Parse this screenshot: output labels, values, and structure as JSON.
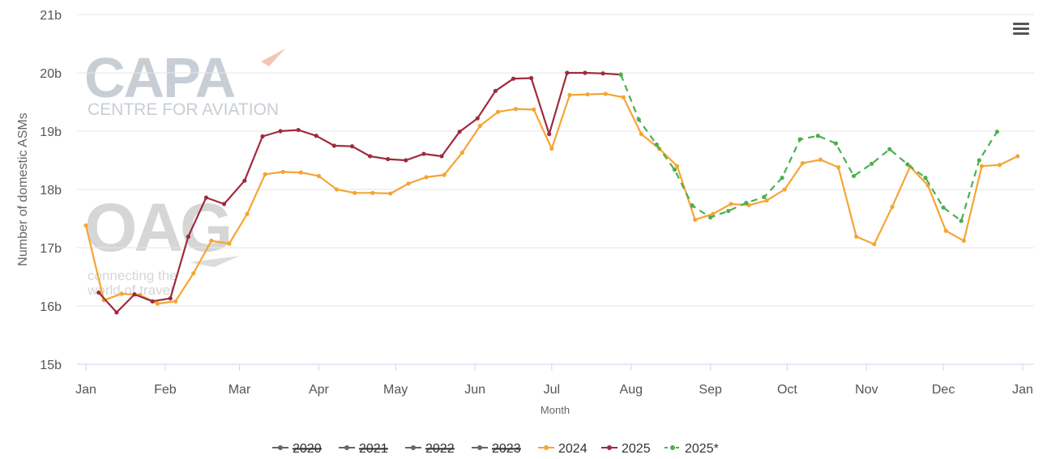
{
  "chart_data": {
    "type": "line",
    "title": "",
    "xlabel": "Month",
    "ylabel": "Number of domestic ASMs",
    "ylim": [
      15,
      21
    ],
    "y_ticks": [
      "15b",
      "16b",
      "17b",
      "18b",
      "19b",
      "20b",
      "21b"
    ],
    "x_ticks": [
      "Jan",
      "Feb",
      "Mar",
      "Apr",
      "May",
      "Jun",
      "Jul",
      "Aug",
      "Sep",
      "Oct",
      "Nov",
      "Dec",
      "Jan"
    ],
    "grid": true,
    "legend_position": "bottom",
    "series": [
      {
        "name": "2020",
        "visible": false,
        "color": "#666666",
        "dashed": false,
        "points": []
      },
      {
        "name": "2021",
        "visible": false,
        "color": "#666666",
        "dashed": false,
        "points": []
      },
      {
        "name": "2022",
        "visible": false,
        "color": "#666666",
        "dashed": false,
        "points": []
      },
      {
        "name": "2023",
        "visible": false,
        "color": "#666666",
        "dashed": false,
        "points": []
      },
      {
        "name": "2024",
        "visible": true,
        "color": "#f5a533",
        "dashed": false,
        "points": [
          [
            "2024-01-01",
            17.38
          ],
          [
            "2024-01-08",
            16.1
          ],
          [
            "2024-01-15",
            16.21
          ],
          [
            "2024-01-22",
            16.19
          ],
          [
            "2024-01-29",
            16.04
          ],
          [
            "2024-02-05",
            16.08
          ],
          [
            "2024-02-12",
            16.56
          ],
          [
            "2024-02-19",
            17.12
          ],
          [
            "2024-02-26",
            17.07
          ],
          [
            "2024-03-04",
            17.58
          ],
          [
            "2024-03-11",
            18.26
          ],
          [
            "2024-03-18",
            18.3
          ],
          [
            "2024-03-25",
            18.29
          ],
          [
            "2024-04-01",
            18.23
          ],
          [
            "2024-04-08",
            18.0
          ],
          [
            "2024-04-15",
            17.94
          ],
          [
            "2024-04-22",
            17.94
          ],
          [
            "2024-04-29",
            17.93
          ],
          [
            "2024-05-06",
            18.1
          ],
          [
            "2024-05-13",
            18.21
          ],
          [
            "2024-05-20",
            18.25
          ],
          [
            "2024-05-27",
            18.63
          ],
          [
            "2024-06-03",
            19.09
          ],
          [
            "2024-06-10",
            19.33
          ],
          [
            "2024-06-17",
            19.38
          ],
          [
            "2024-06-24",
            19.37
          ],
          [
            "2024-07-01",
            18.7
          ],
          [
            "2024-07-08",
            19.62
          ],
          [
            "2024-07-15",
            19.63
          ],
          [
            "2024-07-22",
            19.64
          ],
          [
            "2024-07-29",
            19.58
          ],
          [
            "2024-08-05",
            18.95
          ],
          [
            "2024-08-12",
            18.7
          ],
          [
            "2024-08-19",
            18.4
          ],
          [
            "2024-08-26",
            17.48
          ],
          [
            "2024-09-02",
            17.58
          ],
          [
            "2024-09-09",
            17.75
          ],
          [
            "2024-09-16",
            17.73
          ],
          [
            "2024-09-23",
            17.81
          ],
          [
            "2024-09-30",
            18.0
          ],
          [
            "2024-10-07",
            18.45
          ],
          [
            "2024-10-14",
            18.51
          ],
          [
            "2024-10-21",
            18.38
          ],
          [
            "2024-10-28",
            17.19
          ],
          [
            "2024-11-04",
            17.06
          ],
          [
            "2024-11-11",
            17.7
          ],
          [
            "2024-11-18",
            18.39
          ],
          [
            "2024-11-25",
            18.07
          ],
          [
            "2024-12-02",
            17.29
          ],
          [
            "2024-12-09",
            17.12
          ],
          [
            "2024-12-16",
            18.4
          ],
          [
            "2024-12-23",
            18.42
          ],
          [
            "2024-12-30",
            18.57
          ]
        ]
      },
      {
        "name": "2025",
        "visible": true,
        "color": "#9e2b3c",
        "dashed": false,
        "points": [
          [
            "2025-01-06",
            16.23
          ],
          [
            "2025-01-13",
            15.89
          ],
          [
            "2025-01-20",
            16.2
          ],
          [
            "2025-01-27",
            16.08
          ],
          [
            "2025-02-03",
            16.13
          ],
          [
            "2025-02-10",
            17.19
          ],
          [
            "2025-02-17",
            17.86
          ],
          [
            "2025-02-24",
            17.75
          ],
          [
            "2025-03-03",
            18.15
          ],
          [
            "2025-03-10",
            18.91
          ],
          [
            "2025-03-17",
            19.0
          ],
          [
            "2025-03-24",
            19.02
          ],
          [
            "2025-03-31",
            18.92
          ],
          [
            "2025-04-07",
            18.75
          ],
          [
            "2025-04-14",
            18.74
          ],
          [
            "2025-04-21",
            18.57
          ],
          [
            "2025-04-28",
            18.52
          ],
          [
            "2025-05-05",
            18.5
          ],
          [
            "2025-05-12",
            18.61
          ],
          [
            "2025-05-19",
            18.57
          ],
          [
            "2025-05-26",
            18.99
          ],
          [
            "2025-06-02",
            19.22
          ],
          [
            "2025-06-09",
            19.69
          ],
          [
            "2025-06-16",
            19.9
          ],
          [
            "2025-06-23",
            19.91
          ],
          [
            "2025-06-30",
            18.95
          ],
          [
            "2025-07-07",
            20.0
          ],
          [
            "2025-07-14",
            20.0
          ],
          [
            "2025-07-21",
            19.99
          ],
          [
            "2025-07-28",
            19.97
          ]
        ]
      },
      {
        "name": "2025*",
        "visible": true,
        "color": "#4caf50",
        "dashed": true,
        "points": [
          [
            "2025-07-28",
            19.97
          ],
          [
            "2025-08-04",
            19.2
          ],
          [
            "2025-08-11",
            18.77
          ],
          [
            "2025-08-18",
            18.34
          ],
          [
            "2025-08-25",
            17.72
          ],
          [
            "2025-09-01",
            17.52
          ],
          [
            "2025-09-08",
            17.63
          ],
          [
            "2025-09-15",
            17.77
          ],
          [
            "2025-09-22",
            17.87
          ],
          [
            "2025-09-29",
            18.2
          ],
          [
            "2025-10-06",
            18.86
          ],
          [
            "2025-10-13",
            18.92
          ],
          [
            "2025-10-20",
            18.79
          ],
          [
            "2025-10-27",
            18.23
          ],
          [
            "2025-11-03",
            18.44
          ],
          [
            "2025-11-10",
            18.69
          ],
          [
            "2025-11-17",
            18.43
          ],
          [
            "2025-11-24",
            18.2
          ],
          [
            "2025-12-01",
            17.69
          ],
          [
            "2025-12-08",
            17.46
          ],
          [
            "2025-12-15",
            18.5
          ],
          [
            "2025-12-22",
            18.99
          ]
        ]
      }
    ]
  },
  "watermarks": {
    "capa_logo": "CAPA",
    "capa_subtitle": "CENTRE FOR AVIATION",
    "oag_logo": "OAG",
    "oag_tagline_1": "connecting the",
    "oag_tagline_2": "world of travel"
  },
  "menu_icon": "hamburger-menu-icon"
}
